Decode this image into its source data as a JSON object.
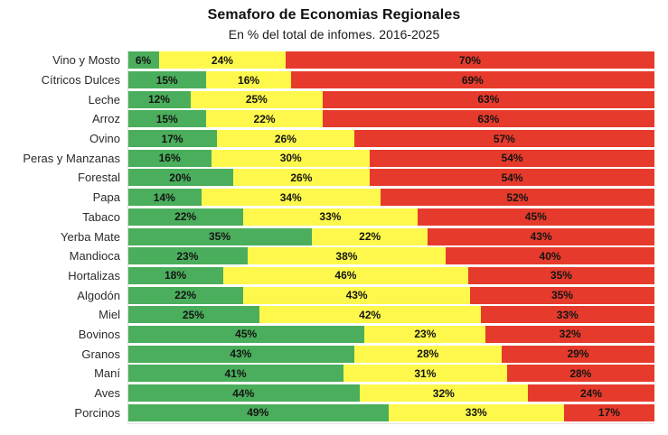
{
  "title": "Semaforo de Economias Regionales",
  "subtitle": "En % del total de infomes. 2016-2025",
  "colors": {
    "green": "#4aae5c",
    "yellow": "#fdf84b",
    "red": "#e63b2c",
    "label_text": "#141414",
    "axis_line": "#d9d9d9"
  },
  "chart_data": {
    "type": "bar",
    "orientation": "horizontal",
    "stacked": true,
    "stack_total": 100,
    "value_suffix": "%",
    "legend": "none",
    "grid": false,
    "title": "Semaforo de Economias Regionales",
    "subtitle": "En % del total de infomes. 2016-2025",
    "xlabel": "",
    "ylabel": "",
    "xlim": [
      0,
      100
    ],
    "categories": [
      "Vino y Mosto",
      "Cítricos Dulces",
      "Leche",
      "Arroz",
      "Ovino",
      "Peras y Manzanas",
      "Forestal",
      "Papa",
      "Tabaco",
      "Yerba Mate",
      "Mandioca",
      "Hortalizas",
      "Algodón",
      "Miel",
      "Bovinos",
      "Granos",
      "Maní",
      "Aves",
      "Porcinos"
    ],
    "series": [
      {
        "name": "green",
        "color_key": "green",
        "values": [
          6,
          15,
          12,
          15,
          17,
          16,
          20,
          14,
          22,
          35,
          23,
          18,
          22,
          25,
          45,
          43,
          41,
          44,
          49
        ]
      },
      {
        "name": "yellow",
        "color_key": "yellow",
        "values": [
          24,
          16,
          25,
          22,
          26,
          30,
          26,
          34,
          33,
          22,
          38,
          46,
          43,
          42,
          23,
          28,
          31,
          32,
          33
        ]
      },
      {
        "name": "red",
        "color_key": "red",
        "values": [
          70,
          69,
          63,
          63,
          57,
          54,
          54,
          52,
          45,
          43,
          40,
          35,
          35,
          33,
          32,
          29,
          28,
          24,
          17
        ]
      }
    ]
  }
}
